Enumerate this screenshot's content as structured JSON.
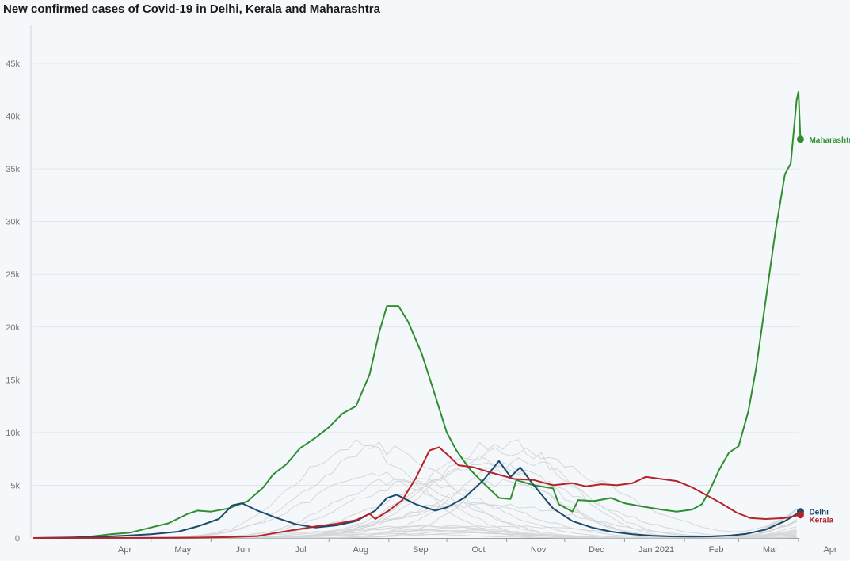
{
  "chart_data": {
    "type": "line",
    "title": "New confirmed cases of Covid-19 in Delhi, Kerala and Maharashtra",
    "xlabel": "",
    "ylabel": "",
    "ylim": [
      0,
      48000
    ],
    "y_ticks": [
      {
        "value": 0,
        "label": "0"
      },
      {
        "value": 5000,
        "label": "5k"
      },
      {
        "value": 10000,
        "label": "10k"
      },
      {
        "value": 15000,
        "label": "15k"
      },
      {
        "value": 20000,
        "label": "20k"
      },
      {
        "value": 25000,
        "label": "25k"
      },
      {
        "value": 30000,
        "label": "30k"
      },
      {
        "value": 35000,
        "label": "35k"
      },
      {
        "value": 40000,
        "label": "40k"
      },
      {
        "value": 45000,
        "label": "45k"
      }
    ],
    "x_ticks": [
      {
        "date": "2020-04-01",
        "label": "Apr"
      },
      {
        "date": "2020-05-01",
        "label": "May"
      },
      {
        "date": "2020-06-01",
        "label": "Jun"
      },
      {
        "date": "2020-07-01",
        "label": "Jul"
      },
      {
        "date": "2020-08-01",
        "label": "Aug"
      },
      {
        "date": "2020-09-01",
        "label": "Sep"
      },
      {
        "date": "2020-10-01",
        "label": "Oct"
      },
      {
        "date": "2020-11-01",
        "label": "Nov"
      },
      {
        "date": "2020-12-01",
        "label": "Dec"
      },
      {
        "date": "2021-01-01",
        "label": "Jan 2021"
      },
      {
        "date": "2021-02-01",
        "label": "Feb"
      },
      {
        "date": "2021-03-01",
        "label": "Mar"
      },
      {
        "date": "2021-04-01",
        "label": "Apr"
      }
    ],
    "x_range": [
      "2020-03-01",
      "2021-04-01"
    ],
    "grid": true,
    "series": [
      {
        "name": "Maharashtra",
        "color": "#2f8e2f",
        "end_marker": true,
        "points": [
          [
            "2020-03-01",
            0
          ],
          [
            "2020-03-20",
            20
          ],
          [
            "2020-03-31",
            150
          ],
          [
            "2020-04-10",
            350
          ],
          [
            "2020-04-20",
            500
          ],
          [
            "2020-05-01",
            1000
          ],
          [
            "2020-05-10",
            1400
          ],
          [
            "2020-05-20",
            2300
          ],
          [
            "2020-05-25",
            2600
          ],
          [
            "2020-06-01",
            2500
          ],
          [
            "2020-06-10",
            2800
          ],
          [
            "2020-06-20",
            3500
          ],
          [
            "2020-06-28",
            4800
          ],
          [
            "2020-07-03",
            6000
          ],
          [
            "2020-07-10",
            7000
          ],
          [
            "2020-07-17",
            8500
          ],
          [
            "2020-07-25",
            9500
          ],
          [
            "2020-08-01",
            10500
          ],
          [
            "2020-08-08",
            11800
          ],
          [
            "2020-08-15",
            12500
          ],
          [
            "2020-08-22",
            15500
          ],
          [
            "2020-08-27",
            19500
          ],
          [
            "2020-08-31",
            22000
          ],
          [
            "2020-09-06",
            22000
          ],
          [
            "2020-09-11",
            20500
          ],
          [
            "2020-09-18",
            17500
          ],
          [
            "2020-09-25",
            13500
          ],
          [
            "2020-10-01",
            10000
          ],
          [
            "2020-10-06",
            8300
          ],
          [
            "2020-10-13",
            6500
          ],
          [
            "2020-10-20",
            5200
          ],
          [
            "2020-10-28",
            3800
          ],
          [
            "2020-11-03",
            3700
          ],
          [
            "2020-11-06",
            5500
          ],
          [
            "2020-11-15",
            5000
          ],
          [
            "2020-11-25",
            4700
          ],
          [
            "2020-11-28",
            3200
          ],
          [
            "2020-12-01",
            2900
          ],
          [
            "2020-12-05",
            2500
          ],
          [
            "2020-12-08",
            3600
          ],
          [
            "2020-12-16",
            3500
          ],
          [
            "2020-12-25",
            3800
          ],
          [
            "2021-01-01",
            3300
          ],
          [
            "2021-01-10",
            3000
          ],
          [
            "2021-01-20",
            2700
          ],
          [
            "2021-01-28",
            2500
          ],
          [
            "2021-02-05",
            2700
          ],
          [
            "2021-02-10",
            3200
          ],
          [
            "2021-02-14",
            4500
          ],
          [
            "2021-02-19",
            6500
          ],
          [
            "2021-02-24",
            8100
          ],
          [
            "2021-03-01",
            8700
          ],
          [
            "2021-03-06",
            12000
          ],
          [
            "2021-03-10",
            16000
          ],
          [
            "2021-03-15",
            22500
          ],
          [
            "2021-03-20",
            29000
          ],
          [
            "2021-03-25",
            34500
          ],
          [
            "2021-03-28",
            35500
          ],
          [
            "2021-03-31",
            41500
          ],
          [
            "2021-04-01",
            42300
          ],
          [
            "2021-04-02",
            37800
          ]
        ]
      },
      {
        "name": "Delhi",
        "color": "#19496b",
        "end_marker": true,
        "points": [
          [
            "2020-03-01",
            0
          ],
          [
            "2020-04-01",
            80
          ],
          [
            "2020-04-20",
            250
          ],
          [
            "2020-05-01",
            350
          ],
          [
            "2020-05-15",
            600
          ],
          [
            "2020-05-25",
            1100
          ],
          [
            "2020-06-05",
            1800
          ],
          [
            "2020-06-12",
            3100
          ],
          [
            "2020-06-17",
            3300
          ],
          [
            "2020-06-25",
            2600
          ],
          [
            "2020-07-05",
            1900
          ],
          [
            "2020-07-15",
            1300
          ],
          [
            "2020-07-25",
            1000
          ],
          [
            "2020-08-05",
            1200
          ],
          [
            "2020-08-15",
            1600
          ],
          [
            "2020-08-25",
            2600
          ],
          [
            "2020-08-31",
            3800
          ],
          [
            "2020-09-05",
            4100
          ],
          [
            "2020-09-15",
            3200
          ],
          [
            "2020-09-25",
            2600
          ],
          [
            "2020-10-01",
            2900
          ],
          [
            "2020-10-10",
            3800
          ],
          [
            "2020-10-20",
            5500
          ],
          [
            "2020-10-28",
            7300
          ],
          [
            "2020-11-03",
            5800
          ],
          [
            "2020-11-08",
            6700
          ],
          [
            "2020-11-15",
            5000
          ],
          [
            "2020-11-25",
            2800
          ],
          [
            "2020-12-05",
            1600
          ],
          [
            "2020-12-15",
            1000
          ],
          [
            "2020-12-25",
            600
          ],
          [
            "2021-01-05",
            350
          ],
          [
            "2021-01-15",
            220
          ],
          [
            "2021-01-25",
            150
          ],
          [
            "2021-02-05",
            130
          ],
          [
            "2021-02-15",
            150
          ],
          [
            "2021-02-25",
            250
          ],
          [
            "2021-03-05",
            400
          ],
          [
            "2021-03-15",
            800
          ],
          [
            "2021-03-25",
            1600
          ],
          [
            "2021-04-02",
            2500
          ]
        ]
      },
      {
        "name": "Kerala",
        "color": "#b62328",
        "end_marker": true,
        "points": [
          [
            "2020-03-01",
            0
          ],
          [
            "2020-05-15",
            15
          ],
          [
            "2020-06-10",
            80
          ],
          [
            "2020-06-25",
            180
          ],
          [
            "2020-07-05",
            500
          ],
          [
            "2020-07-15",
            800
          ],
          [
            "2020-07-25",
            1100
          ],
          [
            "2020-08-05",
            1350
          ],
          [
            "2020-08-15",
            1700
          ],
          [
            "2020-08-22",
            2300
          ],
          [
            "2020-08-25",
            1800
          ],
          [
            "2020-09-01",
            2600
          ],
          [
            "2020-09-08",
            3600
          ],
          [
            "2020-09-15",
            5700
          ],
          [
            "2020-09-22",
            8300
          ],
          [
            "2020-09-27",
            8600
          ],
          [
            "2020-10-02",
            7800
          ],
          [
            "2020-10-07",
            6900
          ],
          [
            "2020-10-15",
            6700
          ],
          [
            "2020-10-22",
            6300
          ],
          [
            "2020-10-28",
            6000
          ],
          [
            "2020-11-05",
            5600
          ],
          [
            "2020-11-15",
            5500
          ],
          [
            "2020-11-25",
            5000
          ],
          [
            "2020-12-05",
            5200
          ],
          [
            "2020-12-12",
            4900
          ],
          [
            "2020-12-20",
            5100
          ],
          [
            "2020-12-28",
            5000
          ],
          [
            "2021-01-05",
            5200
          ],
          [
            "2021-01-12",
            5800
          ],
          [
            "2021-01-20",
            5600
          ],
          [
            "2021-01-28",
            5400
          ],
          [
            "2021-02-05",
            4800
          ],
          [
            "2021-02-12",
            4100
          ],
          [
            "2021-02-20",
            3300
          ],
          [
            "2021-02-28",
            2400
          ],
          [
            "2021-03-07",
            1900
          ],
          [
            "2021-03-15",
            1800
          ],
          [
            "2021-03-25",
            1900
          ],
          [
            "2021-04-02",
            2200
          ]
        ]
      }
    ]
  }
}
